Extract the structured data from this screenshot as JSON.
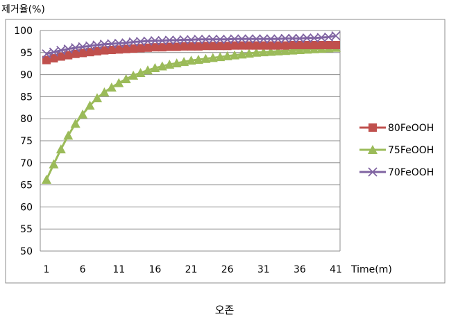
{
  "chart_data": {
    "type": "line",
    "ylabel": "제거율(%)",
    "xlabel": "Time(m)",
    "caption": "오존",
    "ylim": [
      50,
      100
    ],
    "yticks": [
      50,
      55,
      60,
      65,
      70,
      75,
      80,
      85,
      90,
      95,
      100
    ],
    "xticks": [
      1,
      6,
      11,
      16,
      21,
      26,
      31,
      36,
      41
    ],
    "xlim": [
      1,
      41
    ],
    "grid": "horizontal",
    "legend_position": "right",
    "x": [
      1,
      2,
      3,
      4,
      5,
      6,
      7,
      8,
      9,
      10,
      11,
      12,
      13,
      14,
      15,
      16,
      17,
      18,
      19,
      20,
      21,
      22,
      23,
      24,
      25,
      26,
      27,
      28,
      29,
      30,
      31,
      32,
      33,
      34,
      35,
      36,
      37,
      38,
      39,
      40,
      41
    ],
    "series": [
      {
        "name": "80FeOOH",
        "color": "#C0504D",
        "marker": "square",
        "values": [
          93.3,
          93.7,
          94.1,
          94.4,
          94.7,
          94.9,
          95.1,
          95.3,
          95.5,
          95.6,
          95.7,
          95.8,
          95.9,
          96.0,
          96.1,
          96.2,
          96.2,
          96.3,
          96.3,
          96.4,
          96.4,
          96.4,
          96.5,
          96.5,
          96.5,
          96.5,
          96.6,
          96.6,
          96.6,
          96.6,
          96.6,
          96.6,
          96.6,
          96.6,
          96.7,
          96.7,
          96.7,
          96.7,
          96.7,
          96.7,
          96.7
        ]
      },
      {
        "name": "75FeOOH",
        "color": "#9BBB59",
        "marker": "triangle",
        "values": [
          66.2,
          69.7,
          73.1,
          76.2,
          78.9,
          81.0,
          83.0,
          84.7,
          86.0,
          87.1,
          88.1,
          89.0,
          89.8,
          90.4,
          91.0,
          91.5,
          91.9,
          92.3,
          92.6,
          92.9,
          93.2,
          93.4,
          93.6,
          93.8,
          94.0,
          94.2,
          94.4,
          94.6,
          94.8,
          95.0,
          95.1,
          95.2,
          95.3,
          95.4,
          95.5,
          95.6,
          95.7,
          95.8,
          95.9,
          96.0,
          96.1
        ]
      },
      {
        "name": "70FeOOH",
        "color": "#8064A2",
        "marker": "x",
        "values": [
          94.7,
          95.1,
          95.5,
          95.8,
          96.1,
          96.3,
          96.5,
          96.7,
          96.9,
          97.0,
          97.1,
          97.2,
          97.4,
          97.5,
          97.6,
          97.7,
          97.7,
          97.8,
          97.8,
          97.9,
          97.9,
          98.0,
          98.0,
          98.0,
          98.0,
          98.0,
          98.1,
          98.1,
          98.1,
          98.1,
          98.1,
          98.1,
          98.1,
          98.2,
          98.2,
          98.2,
          98.3,
          98.3,
          98.4,
          98.5,
          98.8
        ]
      }
    ]
  }
}
